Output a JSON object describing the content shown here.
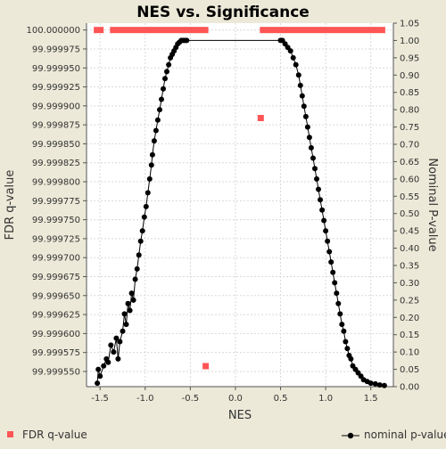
{
  "chart_data": {
    "type": "scatter",
    "title": "NES vs. Significance",
    "xlabel": "NES",
    "ylabel_left": "FDR q-value",
    "ylabel_right": "Nominal P-value",
    "xlim": [
      -1.65,
      1.75
    ],
    "xticks": [
      "-1.5",
      "-1.0",
      "-0.5",
      "0.0",
      "0.5",
      "1.0",
      "1.5"
    ],
    "xtick_values": [
      -1.5,
      -1.0,
      -0.5,
      0.0,
      0.5,
      1.0,
      1.5
    ],
    "ylim_left": [
      99.99953,
      100.000009
    ],
    "yticks_left": [
      "100.000000",
      "99.999975",
      "99.999950",
      "99.999925",
      "99.999900",
      "99.999875",
      "99.999850",
      "99.999825",
      "99.999800",
      "99.999775",
      "99.999750",
      "99.999725",
      "99.999700",
      "99.999675",
      "99.999650",
      "99.999625",
      "99.999600",
      "99.999575",
      "99.999550"
    ],
    "ylim_right": [
      0.0,
      1.05
    ],
    "yticks_right": [
      "1.05",
      "1.00",
      "0.95",
      "0.90",
      "0.85",
      "0.80",
      "0.75",
      "0.70",
      "0.65",
      "0.60",
      "0.55",
      "0.50",
      "0.45",
      "0.40",
      "0.35",
      "0.30",
      "0.25",
      "0.20",
      "0.15",
      "0.10",
      "0.05",
      "0.00"
    ],
    "grid": true,
    "legend_position": "bottom",
    "fdr_color": "#ff5555",
    "nominal_color": "#000000",
    "series": [
      {
        "name": "FDR q-value",
        "axis": "left",
        "marker": "square",
        "bars": [
          [
            -1.57,
            -1.46
          ],
          [
            -1.39,
            -0.3
          ],
          [
            0.27,
            1.66
          ]
        ],
        "bar_y": 100.0,
        "points": [
          [
            0.28,
            99.999884
          ],
          [
            -0.33,
            99.999557
          ]
        ]
      },
      {
        "name": "nominal p-value",
        "axis": "right",
        "marker": "circle",
        "left_branch": [
          [
            -1.53,
            0.01
          ],
          [
            -1.52,
            0.05
          ],
          [
            -1.5,
            0.03
          ],
          [
            -1.46,
            0.06
          ],
          [
            -1.43,
            0.08
          ],
          [
            -1.41,
            0.07
          ],
          [
            -1.38,
            0.12
          ],
          [
            -1.35,
            0.1
          ],
          [
            -1.32,
            0.14
          ],
          [
            -1.3,
            0.08
          ],
          [
            -1.28,
            0.13
          ],
          [
            -1.25,
            0.16
          ],
          [
            -1.23,
            0.21
          ],
          [
            -1.21,
            0.18
          ],
          [
            -1.19,
            0.24
          ],
          [
            -1.17,
            0.22
          ],
          [
            -1.15,
            0.27
          ],
          [
            -1.13,
            0.25
          ],
          [
            -1.11,
            0.31
          ],
          [
            -1.09,
            0.34
          ],
          [
            -1.07,
            0.38
          ],
          [
            -1.05,
            0.42
          ],
          [
            -1.03,
            0.45
          ],
          [
            -1.01,
            0.49
          ],
          [
            -0.99,
            0.52
          ],
          [
            -0.97,
            0.56
          ],
          [
            -0.95,
            0.6
          ],
          [
            -0.93,
            0.64
          ],
          [
            -0.92,
            0.67
          ],
          [
            -0.9,
            0.71
          ],
          [
            -0.88,
            0.74
          ],
          [
            -0.86,
            0.77
          ],
          [
            -0.84,
            0.8
          ],
          [
            -0.82,
            0.83
          ],
          [
            -0.8,
            0.86
          ],
          [
            -0.78,
            0.89
          ],
          [
            -0.76,
            0.91
          ],
          [
            -0.74,
            0.93
          ],
          [
            -0.72,
            0.95
          ],
          [
            -0.7,
            0.96
          ],
          [
            -0.68,
            0.97
          ],
          [
            -0.66,
            0.98
          ],
          [
            -0.64,
            0.99
          ],
          [
            -0.62,
            0.995
          ],
          [
            -0.6,
            1.0
          ],
          [
            -0.58,
            1.0
          ],
          [
            -0.56,
            1.0
          ],
          [
            -0.54,
            1.0
          ]
        ],
        "right_branch": [
          [
            0.5,
            1.0
          ],
          [
            0.52,
            1.0
          ],
          [
            0.55,
            0.99
          ],
          [
            0.58,
            0.98
          ],
          [
            0.61,
            0.97
          ],
          [
            0.64,
            0.95
          ],
          [
            0.67,
            0.93
          ],
          [
            0.7,
            0.9
          ],
          [
            0.72,
            0.87
          ],
          [
            0.74,
            0.84
          ],
          [
            0.76,
            0.81
          ],
          [
            0.78,
            0.78
          ],
          [
            0.8,
            0.75
          ],
          [
            0.82,
            0.72
          ],
          [
            0.84,
            0.69
          ],
          [
            0.86,
            0.66
          ],
          [
            0.88,
            0.63
          ],
          [
            0.9,
            0.6
          ],
          [
            0.92,
            0.57
          ],
          [
            0.94,
            0.54
          ],
          [
            0.96,
            0.51
          ],
          [
            0.98,
            0.48
          ],
          [
            1.0,
            0.45
          ],
          [
            1.02,
            0.42
          ],
          [
            1.04,
            0.39
          ],
          [
            1.06,
            0.36
          ],
          [
            1.08,
            0.33
          ],
          [
            1.1,
            0.3
          ],
          [
            1.12,
            0.27
          ],
          [
            1.14,
            0.24
          ],
          [
            1.16,
            0.21
          ],
          [
            1.18,
            0.18
          ],
          [
            1.2,
            0.16
          ],
          [
            1.22,
            0.13
          ],
          [
            1.24,
            0.11
          ],
          [
            1.26,
            0.09
          ],
          [
            1.28,
            0.08
          ],
          [
            1.3,
            0.06
          ],
          [
            1.33,
            0.05
          ],
          [
            1.36,
            0.04
          ],
          [
            1.39,
            0.03
          ],
          [
            1.42,
            0.02
          ],
          [
            1.46,
            0.015
          ],
          [
            1.5,
            0.01
          ],
          [
            1.55,
            0.008
          ],
          [
            1.6,
            0.005
          ],
          [
            1.65,
            0.003
          ]
        ]
      }
    ]
  }
}
